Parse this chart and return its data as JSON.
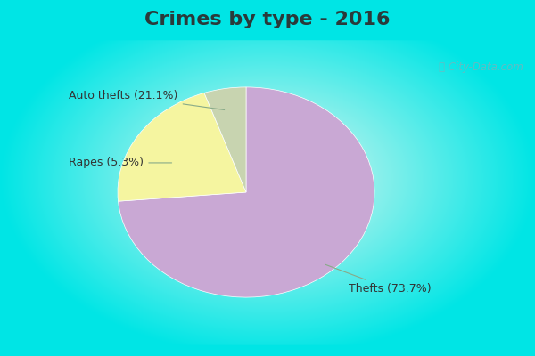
{
  "title": "Crimes by type - 2016",
  "slices": [
    {
      "label": "Thefts",
      "pct": 73.7,
      "color": "#c9a8d4"
    },
    {
      "label": "Auto thefts",
      "pct": 21.1,
      "color": "#f5f5a0"
    },
    {
      "label": "Rapes",
      "pct": 5.3,
      "color": "#c8d4b0"
    }
  ],
  "bg_cyan": "#00e5e5",
  "bg_center": "#e8f8f0",
  "title_fontsize": 16,
  "label_fontsize": 9,
  "watermark": " City-Data.com",
  "title_color": "#2a3a3a"
}
